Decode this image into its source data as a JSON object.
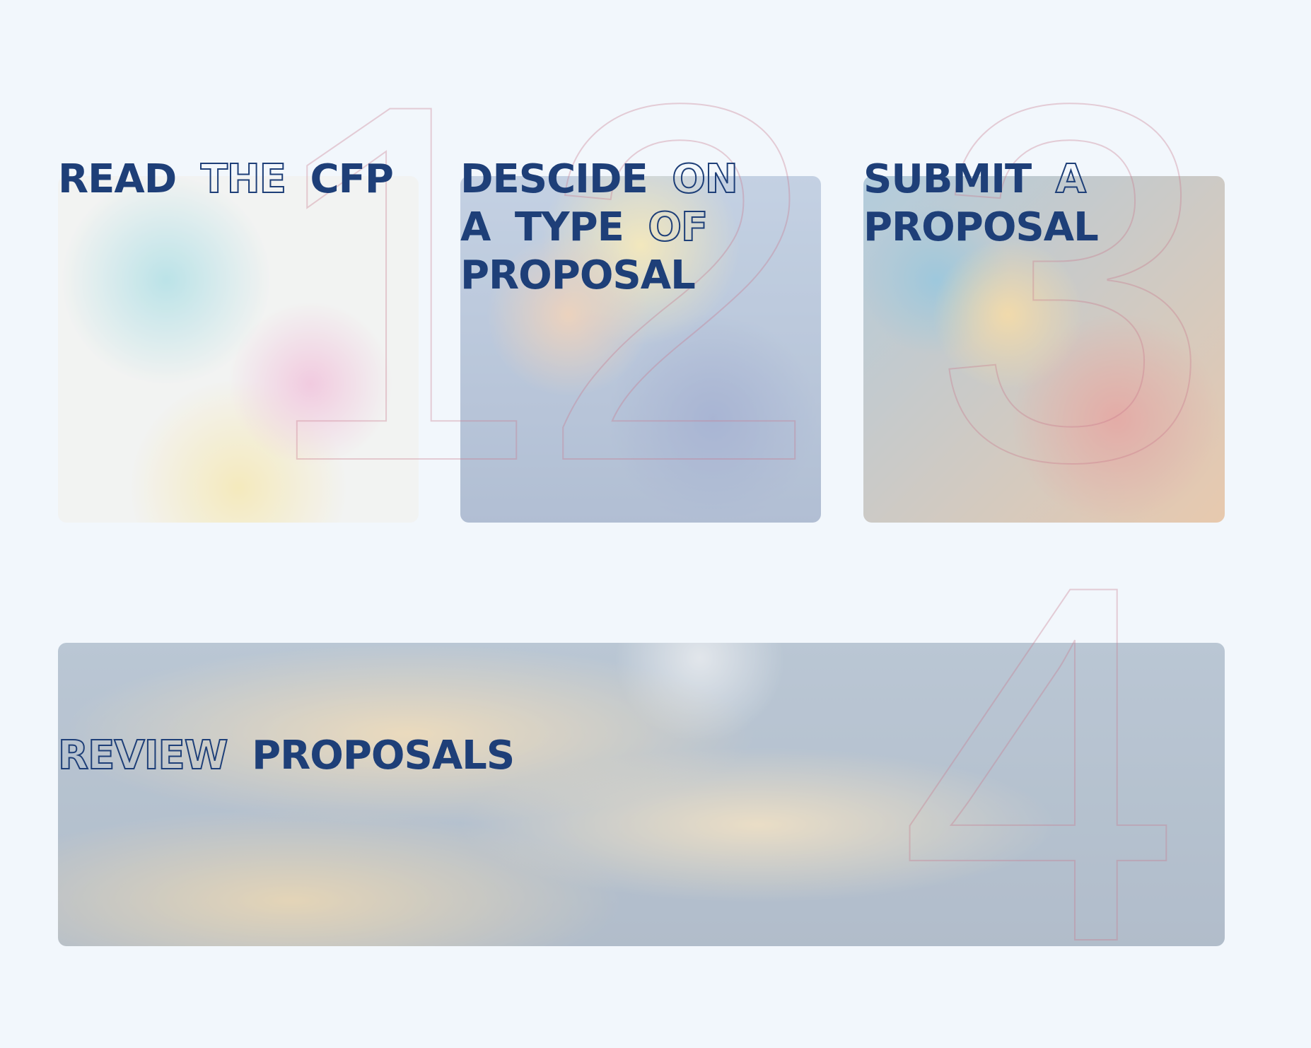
{
  "steps": [
    {
      "number": "1",
      "words": [
        {
          "text": "READ",
          "style": "solid"
        },
        {
          "text": "THE",
          "style": "outline"
        },
        {
          "text": "CFP",
          "style": "solid"
        }
      ]
    },
    {
      "number": "2",
      "words": [
        {
          "text": "DESCIDE",
          "style": "solid"
        },
        {
          "text": "ON",
          "style": "outline"
        },
        {
          "text": "A",
          "style": "solid"
        },
        {
          "text": "TYPE",
          "style": "solid"
        },
        {
          "text": "OF",
          "style": "outline"
        },
        {
          "text": "PROPOSAL",
          "style": "solid"
        }
      ]
    },
    {
      "number": "3",
      "words": [
        {
          "text": "SUBMIT",
          "style": "solid"
        },
        {
          "text": "A",
          "style": "outline"
        },
        {
          "text": "PROPOSAL",
          "style": "solid"
        }
      ]
    },
    {
      "number": "4",
      "words": [
        {
          "text": "REVIEW",
          "style": "outline"
        },
        {
          "text": "PROPOSALS",
          "style": "solid"
        }
      ]
    }
  ]
}
